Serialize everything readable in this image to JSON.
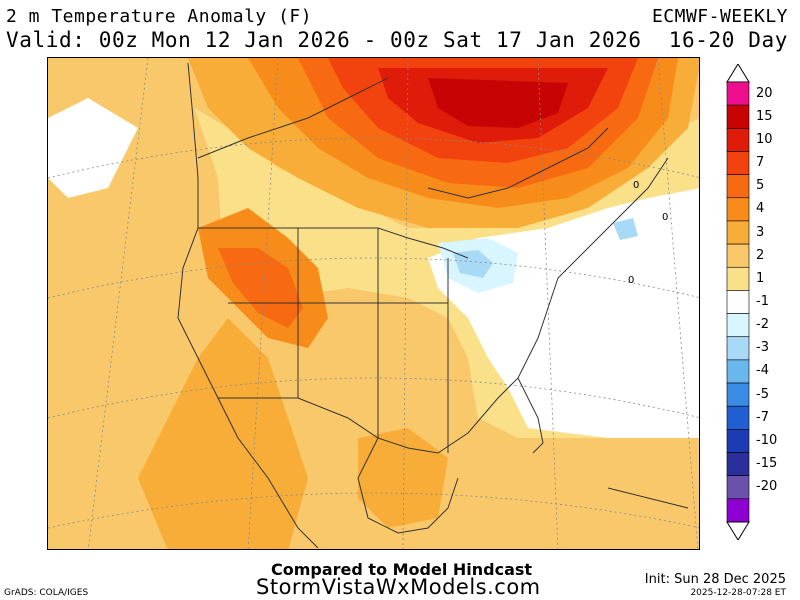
{
  "header": {
    "title": "2 m Temperature Anomaly (F)",
    "valid": "Valid: 00z Mon 12 Jan 2026 - 00z Sat 17 Jan 2026",
    "model": "ECMWF-WEEKLY",
    "range": "16-20 Day"
  },
  "legend": {
    "levels": [
      {
        "label": "20",
        "color": "#ee0f8e"
      },
      {
        "label": "15",
        "color": "#c70303"
      },
      {
        "label": "10",
        "color": "#df1c0a"
      },
      {
        "label": "7",
        "color": "#f2430e"
      },
      {
        "label": "5",
        "color": "#f76a12"
      },
      {
        "label": "4",
        "color": "#f88c1a"
      },
      {
        "label": "3",
        "color": "#f8ad38"
      },
      {
        "label": "2",
        "color": "#f9c86a"
      },
      {
        "label": "1",
        "color": "#fbe08a"
      },
      {
        "label": "-1",
        "color": "#ffffff"
      },
      {
        "label": "-2",
        "color": "#d9f5ff"
      },
      {
        "label": "-3",
        "color": "#a8d9f7"
      },
      {
        "label": "-4",
        "color": "#6ab7ee"
      },
      {
        "label": "-5",
        "color": "#3a8be4"
      },
      {
        "label": "-7",
        "color": "#1f5fd2"
      },
      {
        "label": "-10",
        "color": "#1c3cb4"
      },
      {
        "label": "-15",
        "color": "#6a52ab"
      },
      {
        "label": "-20",
        "color": "#8e00d2"
      }
    ]
  },
  "map": {
    "contour_labels": [
      "0",
      "0",
      "0"
    ]
  },
  "footer": {
    "compared": "Compared to Model Hindcast",
    "site": "StormVistaWxModels.com",
    "grads": "GrADS: COLA/IGES",
    "init": "Init: Sun 28 Dec 2025",
    "stamp": "2025-12-28-07:28 ET"
  }
}
